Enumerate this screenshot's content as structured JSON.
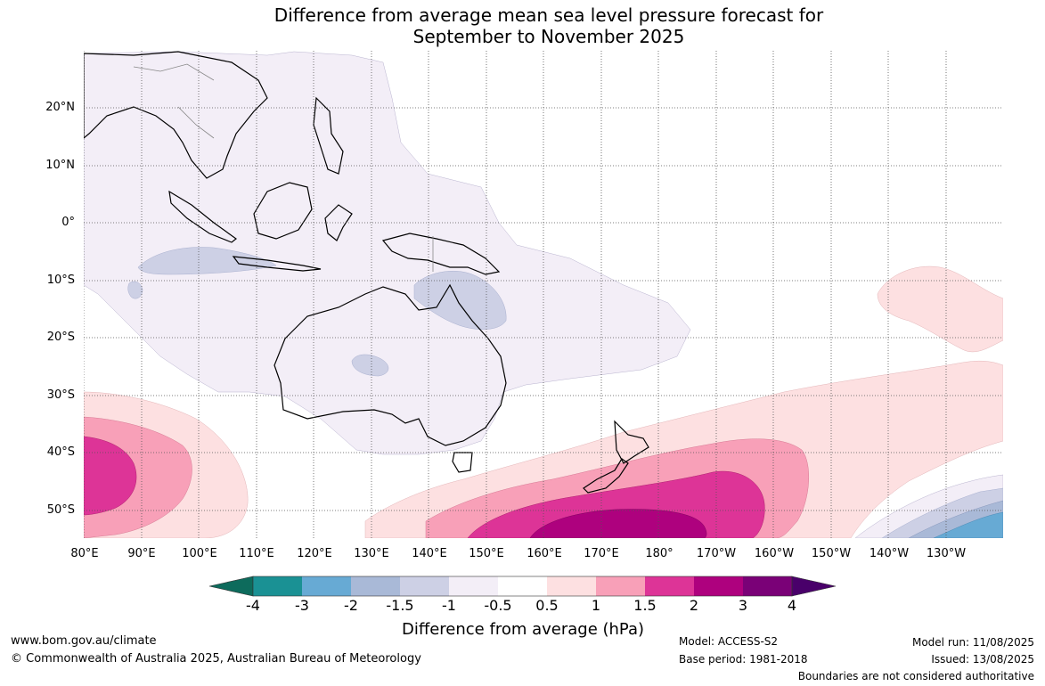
{
  "title": {
    "line1": "Difference from average mean sea level pressure forecast for",
    "line2": "September to November 2025"
  },
  "map": {
    "lat_labels": [
      "20°N",
      "10°N",
      "0°",
      "10°S",
      "20°S",
      "30°S",
      "40°S",
      "50°S"
    ],
    "lon_labels": [
      "80°E",
      "90°E",
      "100°E",
      "110°E",
      "120°E",
      "130°E",
      "140°E",
      "150°E",
      "160°E",
      "170°E",
      "180°",
      "170°W",
      "160°W",
      "150°W",
      "140°W",
      "130°W"
    ],
    "colors": {
      "neg_4_below": "#0d6b5c",
      "neg_4_neg_3": "#1a9194",
      "neg_3_neg_2": "#67aad4",
      "neg_2_neg_15": "#a9b9d7",
      "neg_15_neg_1": "#cdd0e5",
      "neg_1_neg_05": "#f3eef7",
      "neg_05_05": "#ffffff",
      "pos_05_1": "#fde0e1",
      "pos_1_15": "#f8a0b8",
      "pos_15_2": "#dd3497",
      "pos_2_3": "#ae017e",
      "pos_3_4": "#7a0177",
      "pos_4_above": "#49006a"
    }
  },
  "colorbar": {
    "ticks": [
      "-4",
      "-3",
      "-2",
      "-1.5",
      "-1",
      "-0.5",
      "0.5",
      "1",
      "1.5",
      "2",
      "3",
      "4"
    ],
    "title": "Difference from average (hPa)"
  },
  "footer": {
    "website": "www.bom.gov.au/climate",
    "copyright": "© Commonwealth of Australia 2025, Australian Bureau of Meteorology",
    "model": "Model: ACCESS-S2",
    "base_period": "Base period: 1981-2018",
    "model_run": "Model run: 11/08/2025",
    "issued": "Issued: 13/08/2025",
    "disclaimer": "Boundaries are not considered authoritative"
  }
}
